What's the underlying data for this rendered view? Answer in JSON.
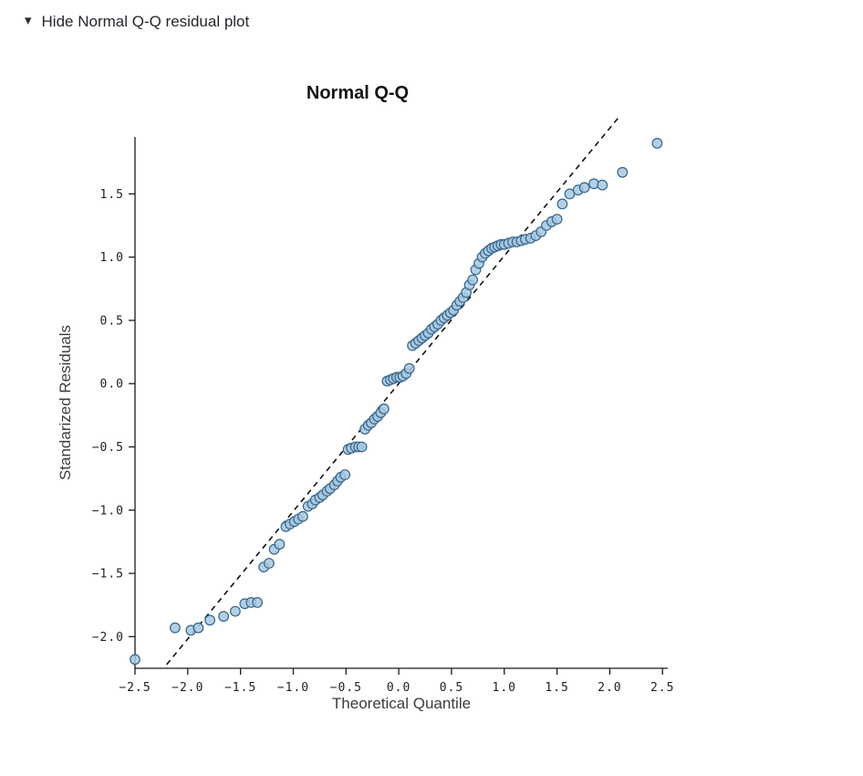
{
  "header": {
    "toggle_label": "Hide Normal Q-Q residual plot",
    "caret_icon": "▾"
  },
  "colors": {
    "point_fill": "#a6c8e0",
    "point_stroke": "#36648b",
    "axis": "#1a1a1a",
    "reference_line": "#111111"
  },
  "chart_data": {
    "type": "scatter",
    "title": "Normal Q-Q",
    "xlabel": "Theoretical Quantile",
    "ylabel": "Standarized Residuals",
    "xlim": [
      -2.5,
      2.55
    ],
    "ylim": [
      -2.25,
      1.95
    ],
    "grid": false,
    "legend": false,
    "x_ticks": {
      "values": [
        -2.5,
        -2.0,
        -1.5,
        -1.0,
        -0.5,
        0.0,
        0.5,
        1.0,
        1.5,
        2.0,
        2.5
      ],
      "labels": [
        "−2.5",
        "−2.0",
        "−1.5",
        "−1.0",
        "−0.5",
        "0.0",
        "0.5",
        "1.0",
        "1.5",
        "2.0",
        "2.5"
      ]
    },
    "y_ticks": {
      "values": [
        -2.0,
        -1.5,
        -1.0,
        -0.5,
        0.0,
        0.5,
        1.0,
        1.5
      ],
      "labels": [
        "−2.0",
        "−1.5",
        "−1.0",
        "−0.5",
        "0.0",
        "0.5",
        "1.0",
        "1.5"
      ]
    },
    "reference_line": {
      "x1": -2.2,
      "y1": -2.22,
      "x2": 2.1,
      "y2": 2.12,
      "style": "dashed"
    },
    "points": [
      [
        -2.5,
        -2.18
      ],
      [
        -2.12,
        -1.93
      ],
      [
        -1.97,
        -1.95
      ],
      [
        -1.9,
        -1.93
      ],
      [
        -1.79,
        -1.87
      ],
      [
        -1.66,
        -1.84
      ],
      [
        -1.55,
        -1.8
      ],
      [
        -1.46,
        -1.74
      ],
      [
        -1.4,
        -1.73
      ],
      [
        -1.34,
        -1.73
      ],
      [
        -1.28,
        -1.45
      ],
      [
        -1.23,
        -1.42
      ],
      [
        -1.18,
        -1.31
      ],
      [
        -1.13,
        -1.27
      ],
      [
        -1.07,
        -1.13
      ],
      [
        -1.03,
        -1.11
      ],
      [
        -0.99,
        -1.09
      ],
      [
        -0.95,
        -1.07
      ],
      [
        -0.91,
        -1.05
      ],
      [
        -0.86,
        -0.97
      ],
      [
        -0.82,
        -0.95
      ],
      [
        -0.79,
        -0.92
      ],
      [
        -0.75,
        -0.9
      ],
      [
        -0.72,
        -0.88
      ],
      [
        -0.68,
        -0.85
      ],
      [
        -0.65,
        -0.83
      ],
      [
        -0.61,
        -0.8
      ],
      [
        -0.58,
        -0.77
      ],
      [
        -0.55,
        -0.74
      ],
      [
        -0.51,
        -0.72
      ],
      [
        -0.48,
        -0.52
      ],
      [
        -0.45,
        -0.51
      ],
      [
        -0.41,
        -0.5
      ],
      [
        -0.38,
        -0.5
      ],
      [
        -0.35,
        -0.5
      ],
      [
        -0.32,
        -0.36
      ],
      [
        -0.29,
        -0.33
      ],
      [
        -0.26,
        -0.31
      ],
      [
        -0.23,
        -0.28
      ],
      [
        -0.2,
        -0.26
      ],
      [
        -0.17,
        -0.23
      ],
      [
        -0.14,
        -0.2
      ],
      [
        -0.11,
        0.02
      ],
      [
        -0.08,
        0.03
      ],
      [
        -0.05,
        0.04
      ],
      [
        -0.02,
        0.05
      ],
      [
        0.01,
        0.05
      ],
      [
        0.04,
        0.06
      ],
      [
        0.07,
        0.08
      ],
      [
        0.1,
        0.12
      ],
      [
        0.13,
        0.3
      ],
      [
        0.16,
        0.32
      ],
      [
        0.19,
        0.34
      ],
      [
        0.22,
        0.36
      ],
      [
        0.25,
        0.38
      ],
      [
        0.28,
        0.4
      ],
      [
        0.31,
        0.43
      ],
      [
        0.34,
        0.45
      ],
      [
        0.37,
        0.47
      ],
      [
        0.4,
        0.5
      ],
      [
        0.43,
        0.52
      ],
      [
        0.46,
        0.54
      ],
      [
        0.49,
        0.56
      ],
      [
        0.52,
        0.58
      ],
      [
        0.55,
        0.62
      ],
      [
        0.58,
        0.65
      ],
      [
        0.61,
        0.68
      ],
      [
        0.64,
        0.72
      ],
      [
        0.67,
        0.78
      ],
      [
        0.7,
        0.82
      ],
      [
        0.73,
        0.9
      ],
      [
        0.76,
        0.95
      ],
      [
        0.79,
        1.0
      ],
      [
        0.82,
        1.03
      ],
      [
        0.85,
        1.05
      ],
      [
        0.88,
        1.07
      ],
      [
        0.91,
        1.08
      ],
      [
        0.94,
        1.09
      ],
      [
        0.97,
        1.1
      ],
      [
        1.0,
        1.1
      ],
      [
        1.04,
        1.11
      ],
      [
        1.08,
        1.12
      ],
      [
        1.12,
        1.12
      ],
      [
        1.16,
        1.13
      ],
      [
        1.2,
        1.14
      ],
      [
        1.25,
        1.15
      ],
      [
        1.3,
        1.17
      ],
      [
        1.35,
        1.2
      ],
      [
        1.4,
        1.25
      ],
      [
        1.45,
        1.28
      ],
      [
        1.5,
        1.3
      ],
      [
        1.55,
        1.42
      ],
      [
        1.62,
        1.5
      ],
      [
        1.7,
        1.53
      ],
      [
        1.76,
        1.55
      ],
      [
        1.85,
        1.58
      ],
      [
        1.93,
        1.57
      ],
      [
        2.12,
        1.67
      ],
      [
        2.45,
        1.9
      ]
    ]
  }
}
